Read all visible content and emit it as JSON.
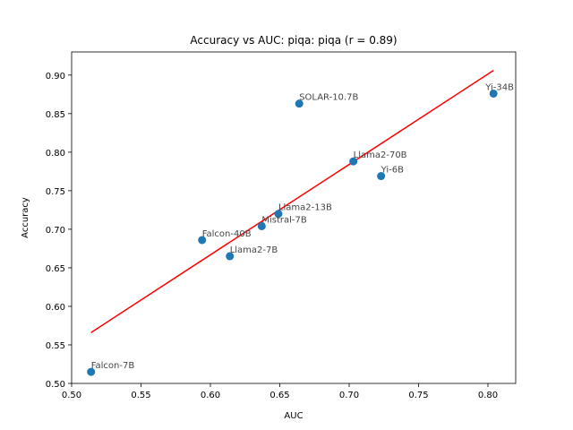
{
  "chart_data": {
    "type": "scatter",
    "title": "Accuracy vs AUC: piqa: piqa (r = 0.89)",
    "xlabel": "AUC",
    "ylabel": "Accuracy",
    "xlim": [
      0.5,
      0.82
    ],
    "ylim": [
      0.5,
      0.93
    ],
    "x_ticks": [
      "0.50",
      "0.55",
      "0.60",
      "0.65",
      "0.70",
      "0.75",
      "0.80"
    ],
    "y_ticks": [
      "0.50",
      "0.55",
      "0.60",
      "0.65",
      "0.70",
      "0.75",
      "0.80",
      "0.85",
      "0.90"
    ],
    "grid": false,
    "points": [
      {
        "label": "Falcon-7B",
        "x": 0.514,
        "y": 0.515
      },
      {
        "label": "Falcon-40B",
        "x": 0.594,
        "y": 0.686
      },
      {
        "label": "Llama2-7B",
        "x": 0.614,
        "y": 0.665
      },
      {
        "label": "Mistral-7B",
        "x": 0.637,
        "y": 0.704
      },
      {
        "label": "Llama2-13B",
        "x": 0.649,
        "y": 0.72
      },
      {
        "label": "SOLAR-10.7B",
        "x": 0.664,
        "y": 0.863
      },
      {
        "label": "Llama2-70B",
        "x": 0.703,
        "y": 0.788
      },
      {
        "label": "Yi-6B",
        "x": 0.723,
        "y": 0.769
      },
      {
        "label": "Yi-34B",
        "x": 0.804,
        "y": 0.876
      }
    ],
    "fit_line": {
      "x": [
        0.514,
        0.804
      ],
      "y": [
        0.566,
        0.906
      ]
    },
    "colors": {
      "points": "#1f77b4",
      "fit": "#ff0000",
      "labels": "#444444"
    }
  }
}
